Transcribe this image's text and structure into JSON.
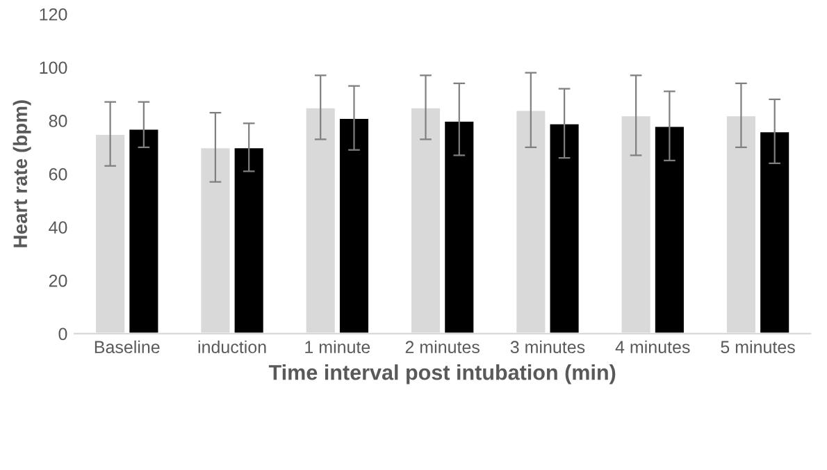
{
  "chart_data": {
    "type": "bar",
    "xlabel": "Time interval post intubation (min)",
    "ylabel": "Heart rate (bpm)",
    "categories": [
      "Baseline",
      "induction",
      "1 minute",
      "2 minutes",
      "3 minutes",
      "4 minutes",
      "5 minutes"
    ],
    "series": [
      {
        "color": "#d9d9d9",
        "values": [
          75,
          70,
          85,
          85,
          84,
          82,
          82
        ],
        "errors": [
          [
            63,
            87
          ],
          [
            57,
            83
          ],
          [
            73,
            97
          ],
          [
            73,
            97
          ],
          [
            70,
            98
          ],
          [
            67,
            97
          ],
          [
            70,
            94
          ]
        ]
      },
      {
        "color": "#000000",
        "values": [
          77,
          70,
          81,
          80,
          79,
          78,
          76
        ],
        "errors": [
          [
            70,
            87
          ],
          [
            61,
            79
          ],
          [
            69,
            93
          ],
          [
            67,
            94
          ],
          [
            66,
            92
          ],
          [
            65,
            91
          ],
          [
            64,
            88
          ]
        ]
      }
    ],
    "ylim": [
      0,
      120
    ],
    "yticks": [
      0,
      20,
      40,
      60,
      80,
      100,
      120
    ],
    "grid": false
  }
}
